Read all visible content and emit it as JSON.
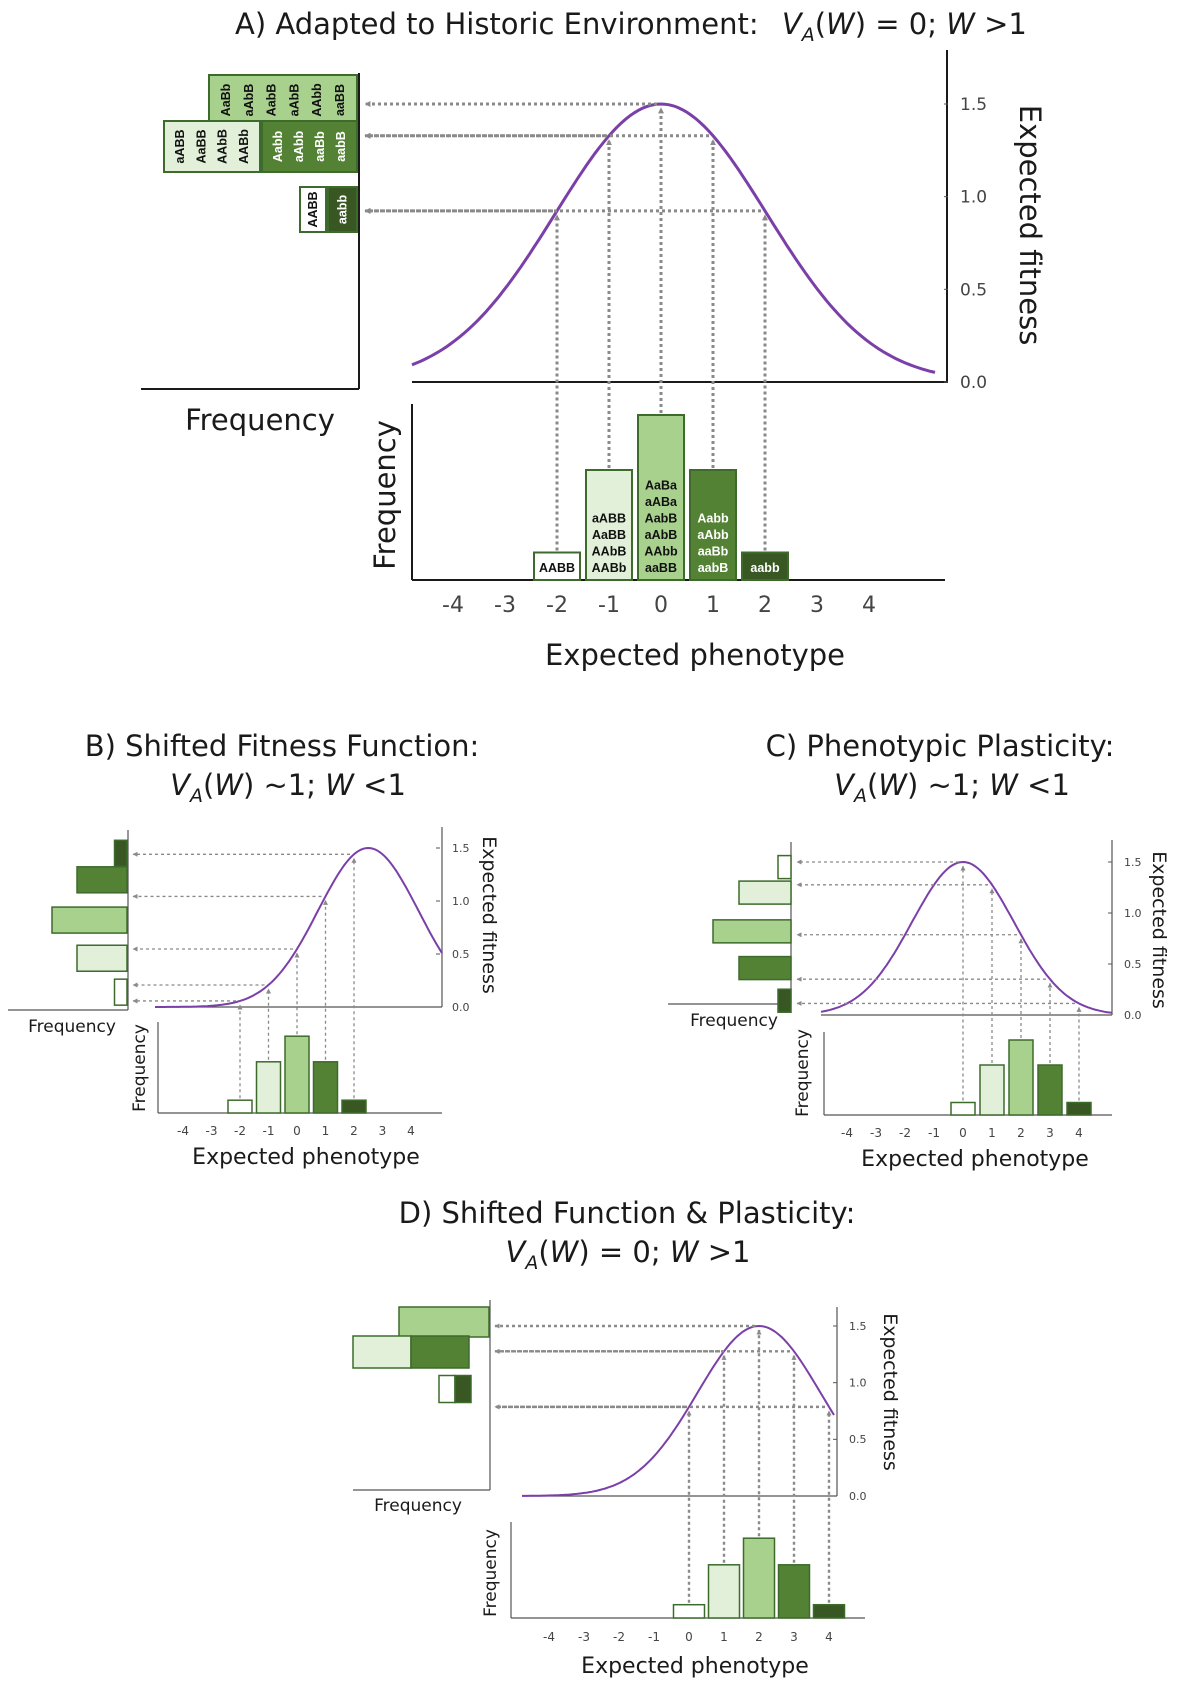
{
  "colors": {
    "curve": "#7b3fa8",
    "arrow": "#8a8a8a",
    "bar_edge": "#3c6b2c",
    "g0": "#ffffff",
    "g1": "#e2f0d9",
    "g2": "#a9d18e",
    "g3": "#548235",
    "g4": "#385723"
  },
  "icons": {
    "arrowhead": "triangle-arrowhead"
  },
  "chart_data": [
    {
      "id": "A",
      "type": "bar",
      "title_prefix": "A) Adapted to Historic Environment:",
      "title_expr": "V_A(W) = 0; W >1",
      "title_parts": [
        "V",
        "A",
        "(",
        "W",
        ") = 0; ",
        "W",
        " >1"
      ],
      "xlabel": "Expected phenotype",
      "ylabel_bars": "Frequency",
      "ylabel_fitness": "Expected fitness",
      "ylabel_side": "Frequency",
      "x_ticks": [
        "-4",
        "-3",
        "-2",
        "-1",
        "0",
        "1",
        "2",
        "3",
        "4"
      ],
      "fitness_ticks": [
        "0.0",
        "0.5",
        "1.0",
        "1.5"
      ],
      "xlim": [
        -5,
        5
      ],
      "fitness_ylim": [
        0,
        1.5
      ],
      "fitness_curve": {
        "type": "gaussian",
        "peak_phenotype": 0,
        "max_fitness": 1.5,
        "sd": 2.03
      },
      "bars": [
        {
          "phenotype": -2,
          "frequency": 1,
          "genotypes": [
            "AABB"
          ]
        },
        {
          "phenotype": -1,
          "frequency": 4,
          "genotypes": [
            "aABB",
            "AaBB",
            "AAbB",
            "AABb"
          ]
        },
        {
          "phenotype": 0,
          "frequency": 6,
          "genotypes": [
            "AaBa",
            "aABa",
            "AabB",
            "aAbB",
            "AAbb",
            "aaBB"
          ]
        },
        {
          "phenotype": 1,
          "frequency": 4,
          "genotypes": [
            "Aabb",
            "aAbb",
            "aaBb",
            "aabB"
          ]
        },
        {
          "phenotype": 2,
          "frequency": 1,
          "genotypes": [
            "aabb"
          ]
        }
      ],
      "side_fitness_bars": [
        {
          "fitness": 1.5,
          "segments": [
            {
              "frequency": 6,
              "genotypes": [
                "AaBb",
                "aAbB",
                "AabB",
                "aAbB",
                "AAbb",
                "aaBB"
              ]
            }
          ]
        },
        {
          "fitness": 1.33,
          "segments": [
            {
              "frequency": 4,
              "genotypes": [
                "aABB",
                "AaBB",
                "AAbB",
                "AABb"
              ]
            },
            {
              "frequency": 4,
              "genotypes": [
                "Aabb",
                "aAbb",
                "aaBb",
                "aabB"
              ]
            }
          ]
        },
        {
          "fitness": 1.0,
          "segments": [
            {
              "frequency": 1,
              "genotypes": [
                "AABB"
              ]
            },
            {
              "frequency": 1,
              "genotypes": [
                "aabb"
              ]
            }
          ]
        }
      ]
    },
    {
      "id": "B",
      "type": "bar",
      "title_line1": "B) Shifted Fitness Function:",
      "title_expr": "V_A(W) ~1; W <1",
      "title_parts": [
        "V",
        "A",
        "(",
        "W",
        ") ~1; ",
        "W",
        " <1"
      ],
      "xlabel": "Expected phenotype",
      "ylabel_bars": "Frequency",
      "ylabel_fitness": "Expected fitness",
      "ylabel_side": "Frequency",
      "x_ticks": [
        "-4",
        "-3",
        "-2",
        "-1",
        "0",
        "1",
        "2",
        "3",
        "4"
      ],
      "fitness_ticks": [
        "0.0",
        "0.5",
        "1.0",
        "1.5"
      ],
      "xlim": [
        -5,
        5
      ],
      "fitness_ylim": [
        0,
        1.5
      ],
      "fitness_curve": {
        "type": "gaussian",
        "peak_phenotype": 2.5,
        "max_fitness": 1.5,
        "sd": 1.76
      },
      "bars": [
        {
          "phenotype": -2,
          "frequency": 1
        },
        {
          "phenotype": -1,
          "frequency": 4
        },
        {
          "phenotype": 0,
          "frequency": 6
        },
        {
          "phenotype": 1,
          "frequency": 4
        },
        {
          "phenotype": 2,
          "frequency": 1
        }
      ],
      "side_fitness_bars": [
        {
          "fitness": 1.45,
          "segments": [
            {
              "frequency": 1
            }
          ]
        },
        {
          "fitness": 1.2,
          "segments": [
            {
              "frequency": 4
            }
          ]
        },
        {
          "fitness": 0.82,
          "segments": [
            {
              "frequency": 6
            }
          ]
        },
        {
          "fitness": 0.46,
          "segments": [
            {
              "frequency": 4
            }
          ]
        },
        {
          "fitness": 0.14,
          "segments": [
            {
              "frequency": 1
            }
          ]
        }
      ]
    },
    {
      "id": "C",
      "type": "bar",
      "title_line1": "C) Phenotypic Plasticity:",
      "title_expr": "V_A(W) ~1; W <1",
      "title_parts": [
        "V",
        "A",
        "(",
        "W",
        ") ~1; ",
        "W",
        " <1"
      ],
      "xlabel": "Expected phenotype",
      "ylabel_bars": "Frequency",
      "ylabel_fitness": "Expected fitness",
      "ylabel_side": "Frequency",
      "x_ticks": [
        "-4",
        "-3",
        "-2",
        "-1",
        "0",
        "1",
        "2",
        "3",
        "4"
      ],
      "fitness_ticks": [
        "0.0",
        "0.5",
        "1.0",
        "1.5"
      ],
      "xlim": [
        -5,
        5
      ],
      "fitness_ylim": [
        0,
        1.5
      ],
      "fitness_curve": {
        "type": "gaussian",
        "peak_phenotype": 0,
        "max_fitness": 1.5,
        "sd": 1.76
      },
      "bars": [
        {
          "phenotype": 0,
          "frequency": 1
        },
        {
          "phenotype": 1,
          "frequency": 4
        },
        {
          "phenotype": 2,
          "frequency": 6
        },
        {
          "phenotype": 3,
          "frequency": 4
        },
        {
          "phenotype": 4,
          "frequency": 1
        }
      ],
      "side_fitness_bars": [
        {
          "fitness": 1.45,
          "segments": [
            {
              "frequency": 1
            }
          ]
        },
        {
          "fitness": 1.2,
          "segments": [
            {
              "frequency": 4
            }
          ]
        },
        {
          "fitness": 0.82,
          "segments": [
            {
              "frequency": 6
            }
          ]
        },
        {
          "fitness": 0.46,
          "segments": [
            {
              "frequency": 4
            }
          ]
        },
        {
          "fitness": 0.14,
          "segments": [
            {
              "frequency": 1
            }
          ]
        }
      ]
    },
    {
      "id": "D",
      "type": "bar",
      "title_line1": "D) Shifted Function & Plasticity:",
      "title_expr": "V_A(W) = 0; W >1",
      "title_parts": [
        "V",
        "A",
        "(",
        "W",
        ") = 0; ",
        "W",
        " >1"
      ],
      "xlabel": "Expected phenotype",
      "ylabel_bars": "Frequency",
      "ylabel_fitness": "Expected fitness",
      "ylabel_side": "Frequency",
      "x_ticks": [
        "-4",
        "-3",
        "-2",
        "-1",
        "0",
        "1",
        "2",
        "3",
        "4"
      ],
      "fitness_ticks": [
        "0.0",
        "0.5",
        "1.0",
        "1.5"
      ],
      "xlim": [
        -5,
        5
      ],
      "fitness_ylim": [
        0,
        1.5
      ],
      "fitness_curve": {
        "type": "gaussian",
        "peak_phenotype": 2,
        "max_fitness": 1.5,
        "sd": 1.76
      },
      "bars": [
        {
          "phenotype": 0,
          "frequency": 1
        },
        {
          "phenotype": 1,
          "frequency": 4
        },
        {
          "phenotype": 2,
          "frequency": 6
        },
        {
          "phenotype": 3,
          "frequency": 4
        },
        {
          "phenotype": 4,
          "frequency": 1
        }
      ],
      "side_fitness_bars": [
        {
          "fitness": 1.5,
          "segments": [
            {
              "frequency": 6
            }
          ]
        },
        {
          "fitness": 1.3,
          "segments": [
            {
              "frequency": 4
            },
            {
              "frequency": 4
            }
          ]
        },
        {
          "fitness": 0.87,
          "segments": [
            {
              "frequency": 1
            },
            {
              "frequency": 1
            }
          ]
        }
      ]
    }
  ]
}
